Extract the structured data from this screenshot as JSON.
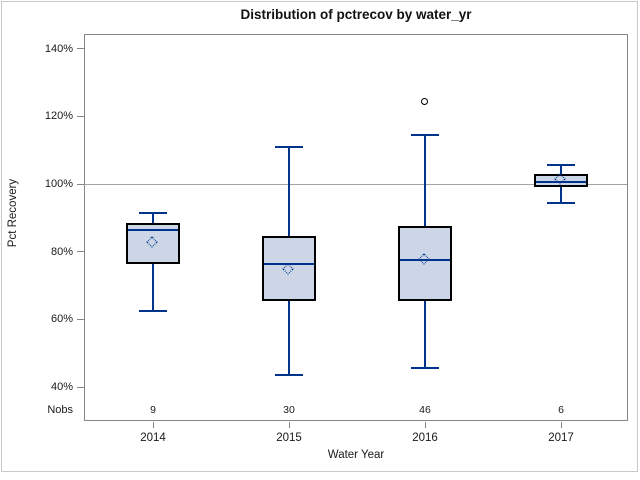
{
  "colors": {
    "accent_line": "#00338c",
    "box_fill": "#ccd6e6",
    "box_border": "#000000",
    "wall_border": "#868686",
    "ref_line": "#a3a3a3",
    "frame_border": "#c9c9c9",
    "text": "#1a1a1a"
  },
  "chart_data": {
    "type": "boxplot",
    "title": "Distribution of pctrecov by water_yr",
    "xlabel": "Water Year",
    "ylabel": "Pct Recovery",
    "nobs_label": "Nobs",
    "legend_position": "none",
    "grid": "off",
    "y_axis": {
      "ylim": [
        36,
        144
      ],
      "ticks": [
        {
          "value": 40,
          "label": "40%"
        },
        {
          "value": 60,
          "label": "60%"
        },
        {
          "value": 80,
          "label": "80%"
        },
        {
          "value": 100,
          "label": "100%"
        },
        {
          "value": 120,
          "label": "120%"
        },
        {
          "value": 140,
          "label": "140%"
        }
      ],
      "reference_line": 100
    },
    "categories": [
      "2014",
      "2015",
      "2016",
      "2017"
    ],
    "series": [
      {
        "year": "2014",
        "nobs": "9",
        "whisker_low": 62.5,
        "q1": 76.5,
        "median": 86.5,
        "mean": 82.5,
        "q3": 88.5,
        "whisker_high": 91.5,
        "outliers": []
      },
      {
        "year": "2015",
        "nobs": "30",
        "whisker_low": 43.5,
        "q1": 65.5,
        "median": 76.5,
        "mean": 74.5,
        "q3": 84.5,
        "whisker_high": 111,
        "outliers": []
      },
      {
        "year": "2016",
        "nobs": "46",
        "whisker_low": 45.5,
        "q1": 65.5,
        "median": 77.5,
        "mean": 77.5,
        "q3": 87.5,
        "whisker_high": 114.5,
        "outliers": [
          124
        ]
      },
      {
        "year": "2017",
        "nobs": "6",
        "whisker_low": 94.5,
        "q1": 99,
        "median": 100.5,
        "mean": 101,
        "q3": 103,
        "whisker_high": 105.5,
        "outliers": []
      }
    ]
  }
}
